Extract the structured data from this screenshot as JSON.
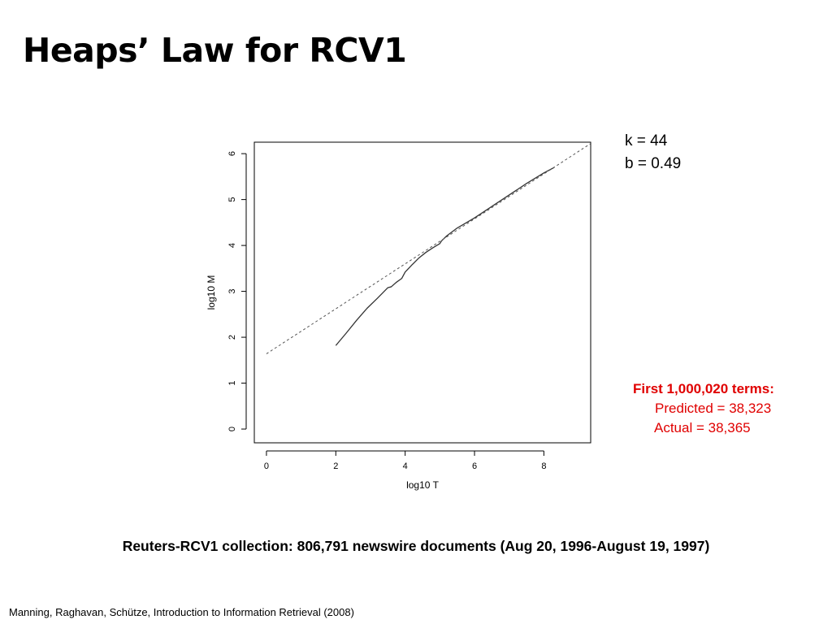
{
  "slide": {
    "title": "Heaps’ Law for RCV1",
    "params": {
      "k": "k = 44",
      "b": "b = 0.49"
    },
    "note": {
      "heading": "First 1,000,020 terms:",
      "predicted": "Predicted = 38,323",
      "actual": "Actual = 38,365"
    },
    "caption": "Reuters-RCV1 collection: 806,791 newswire documents (Aug 20, 1996-August 19, 1997)",
    "citation": "Manning, Raghavan, Schütze, Introduction to Information Retrieval (2008)"
  },
  "colors": {
    "note_red": "#e00000",
    "line": "#333333",
    "fit": "#555555"
  },
  "chart_data": {
    "type": "line",
    "xlabel": "log10 T",
    "ylabel": "log10 M",
    "xlim": [
      -0.35,
      9.35
    ],
    "ylim": [
      -0.3,
      6.25
    ],
    "xticks": [
      0,
      2,
      4,
      6,
      8
    ],
    "yticks": [
      0,
      1,
      2,
      3,
      4,
      5,
      6
    ],
    "grid": false,
    "series": [
      {
        "style": "solid",
        "x": [
          2.0,
          2.3,
          2.6,
          2.9,
          3.2,
          3.5,
          3.6,
          3.75,
          3.9,
          4.0,
          4.2,
          4.4,
          4.6,
          4.8,
          5.0,
          5.05,
          5.2,
          5.5,
          6.0,
          6.5,
          7.0,
          7.5,
          8.0,
          8.3
        ],
        "y": [
          1.82,
          2.09,
          2.37,
          2.63,
          2.85,
          3.08,
          3.1,
          3.2,
          3.28,
          3.42,
          3.58,
          3.73,
          3.85,
          3.95,
          4.04,
          4.1,
          4.21,
          4.38,
          4.6,
          4.85,
          5.1,
          5.35,
          5.58,
          5.7
        ]
      },
      {
        "style": "dashed",
        "x": [
          0,
          9.35
        ],
        "y": [
          1.64,
          6.22
        ]
      }
    ]
  }
}
